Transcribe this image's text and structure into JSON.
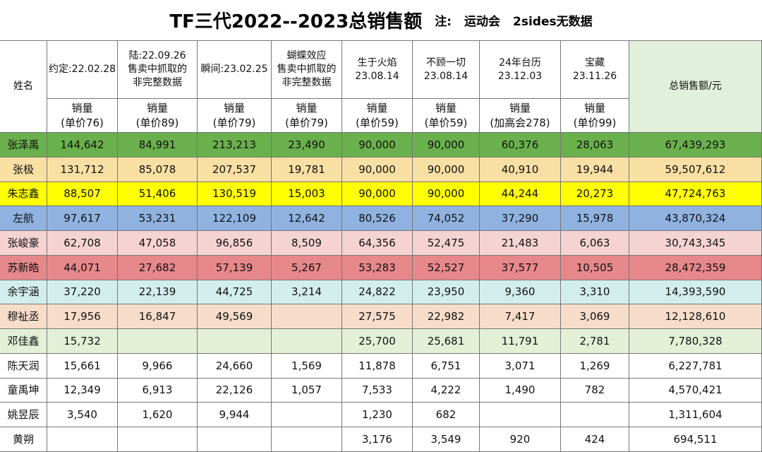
{
  "title": "TF三代2022--2023总销售额",
  "note": [
    "注:",
    "运动会",
    "2sides无数据"
  ],
  "table": {
    "headers": [
      [
        "姓名"
      ],
      [
        "约定:22.02.28"
      ],
      [
        "陆:22.09.26",
        "售卖中抓取的",
        "非完整数据"
      ],
      [
        "瞬间:23.02.25"
      ],
      [
        "蝴蝶效应",
        "售卖中抓取的",
        "非完整数据"
      ],
      [
        "生于火焰",
        "23.08.14"
      ],
      [
        "不顾一切",
        "23.08.14"
      ],
      [
        "24年台历",
        "23.12.03"
      ],
      [
        "宝藏",
        "23.11.26"
      ],
      [
        "总销售额/元"
      ]
    ],
    "subheaders": [
      [
        "销量",
        "(单价76)"
      ],
      [
        "销量",
        "(单价89)"
      ],
      [
        "销量",
        "(单价79)"
      ],
      [
        "销量",
        "(单价79)"
      ],
      [
        "销量",
        "(单价59)"
      ],
      [
        "销量",
        "(单价59)"
      ],
      [
        "销量",
        "(加高会278)"
      ],
      [
        "销量",
        "(单价99)"
      ]
    ],
    "header_color": "#ffffff",
    "total_header_color": "#e2efda",
    "rows": [
      {
        "color": "#6ab04c",
        "cells": [
          "张泽禹",
          "144,642",
          "84,991",
          "213,213",
          "23,490",
          "90,000",
          "90,000",
          "60,376",
          "28,063",
          "67,439,293"
        ]
      },
      {
        "color": "#f8dfa3",
        "cells": [
          "张极",
          "131,712",
          "85,078",
          "207,537",
          "19,781",
          "90,000",
          "90,000",
          "40,910",
          "19,944",
          "59,507,612"
        ]
      },
      {
        "color": "#ffff00",
        "cells": [
          "朱志鑫",
          "88,507",
          "51,406",
          "130,519",
          "15,003",
          "90,000",
          "90,000",
          "44,244",
          "20,273",
          "47,724,763"
        ]
      },
      {
        "color": "#8fb2e0",
        "cells": [
          "左航",
          "97,617",
          "53,231",
          "122,109",
          "12,642",
          "80,526",
          "74,052",
          "37,290",
          "15,978",
          "43,870,324"
        ]
      },
      {
        "color": "#f5d3d3",
        "cells": [
          "张峻豪",
          "62,708",
          "47,058",
          "96,856",
          "8,509",
          "64,356",
          "52,475",
          "21,483",
          "6,063",
          "30,743,345"
        ]
      },
      {
        "color": "#e6878a",
        "cells": [
          "苏新皓",
          "44,071",
          "27,682",
          "57,139",
          "5,267",
          "53,283",
          "52,527",
          "37,577",
          "10,505",
          "28,472,359"
        ]
      },
      {
        "color": "#d2eeec",
        "cells": [
          "余宇涵",
          "37,220",
          "22,139",
          "44,725",
          "3,214",
          "24,822",
          "23,950",
          "9,360",
          "3,310",
          "14,393,590"
        ]
      },
      {
        "color": "#f7ddc9",
        "cells": [
          "穆祉丞",
          "17,956",
          "16,847",
          "49,569",
          null,
          "27,575",
          "22,982",
          "7,417",
          "3,069",
          "12,128,610"
        ]
      },
      {
        "color": "#e4f0d6",
        "cells": [
          "邓佳鑫",
          "15,732",
          null,
          null,
          null,
          "25,700",
          "25,681",
          "11,791",
          "2,781",
          "7,780,328"
        ]
      },
      {
        "color": "#ffffff",
        "cells": [
          "陈天润",
          "15,661",
          "9,966",
          "24,660",
          "1,569",
          "11,878",
          "6,751",
          "3,071",
          "1,269",
          "6,227,781"
        ]
      },
      {
        "color": "#ffffff",
        "cells": [
          "童禹坤",
          "12,349",
          "6,913",
          "22,126",
          "1,057",
          "7,533",
          "4,222",
          "1,490",
          "782",
          "4,570,421"
        ]
      },
      {
        "color": "#ffffff",
        "cells": [
          "姚昱辰",
          "3,540",
          "1,620",
          "9,944",
          null,
          "1,230",
          "682",
          null,
          null,
          "1,311,604"
        ]
      },
      {
        "color": "#ffffff",
        "cells": [
          "黄朔",
          null,
          null,
          null,
          null,
          "3,176",
          "3,549",
          "920",
          "424",
          "694,511"
        ]
      }
    ]
  }
}
